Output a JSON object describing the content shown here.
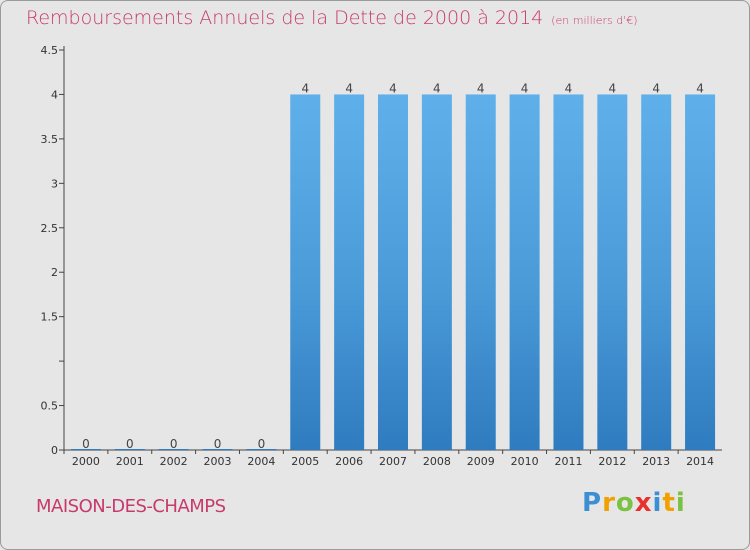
{
  "header": {
    "title": "Remboursements Annuels de la Dette de 2000 à 2014",
    "unit": "(en milliers d'€)"
  },
  "footer": {
    "town": "MAISON-DES-CHAMPS",
    "logo": "Proxiti"
  },
  "chart_data": {
    "type": "bar",
    "title": "Remboursements Annuels de la Dette de 2000 à 2014",
    "subtitle": "(en milliers d'€)",
    "categories": [
      "2000",
      "2001",
      "2002",
      "2003",
      "2004",
      "2005",
      "2006",
      "2007",
      "2008",
      "2009",
      "2010",
      "2011",
      "2012",
      "2013",
      "2014"
    ],
    "values": [
      0,
      0,
      0,
      0,
      0,
      4,
      4,
      4,
      4,
      4,
      4,
      4,
      4,
      4,
      4
    ],
    "data_labels": [
      "0",
      "0",
      "0",
      "0",
      "0",
      "4",
      "4",
      "4",
      "4",
      "4",
      "4",
      "4",
      "4",
      "4",
      "4"
    ],
    "y_ticks": [
      0,
      0.5,
      1,
      1.5,
      2,
      2.5,
      3,
      3.5,
      4,
      4.5
    ],
    "y_tick_labels": [
      "0",
      "0.5",
      "",
      "1.5",
      "2",
      "2.5",
      "3",
      "3.5",
      "4",
      "4.5"
    ],
    "ylim": [
      0,
      4.5
    ],
    "grid": false,
    "bar_color": "#5aa9e6",
    "bar_color_dark": "#2f7bbf"
  }
}
